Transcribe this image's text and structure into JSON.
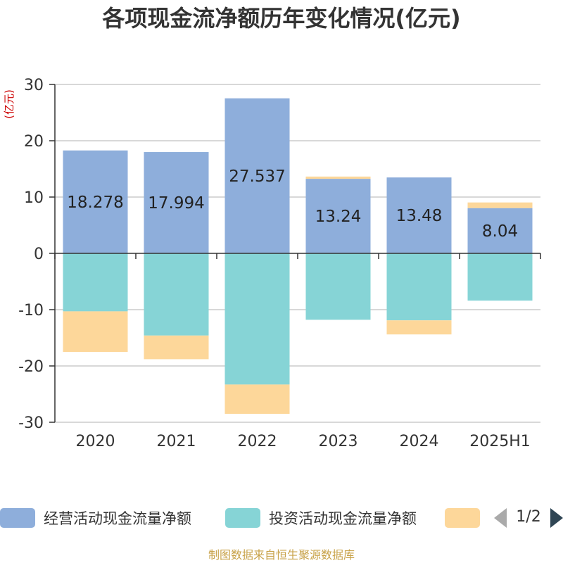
{
  "title": "各项现金流净额历年变化情况(亿元)",
  "source": "制图数据来自恒生聚源数据库",
  "colors": {
    "operating": "#8eaedb",
    "investing": "#86d4d6",
    "financing": "#fdd79a",
    "source_text": "#c8a248",
    "unit_text": "#cc0000"
  },
  "legend": {
    "items": [
      {
        "label": "经营活动现金流量净额"
      },
      {
        "label": "投资活动现金流量净额"
      },
      {
        "label": ""
      }
    ],
    "page": "1/2",
    "prev_icon": "triangle-left-icon",
    "next_icon": "triangle-right-icon"
  },
  "chart_data": {
    "type": "bar",
    "stacked": true,
    "unit_label": "(亿元)",
    "categories": [
      "2020",
      "2021",
      "2022",
      "2023",
      "2024",
      "2025H1"
    ],
    "ylim": [
      -30,
      30
    ],
    "yticks": [
      30,
      20,
      10,
      0,
      -10,
      -20,
      -30
    ],
    "grid": true,
    "series": [
      {
        "name": "经营活动现金流量净额",
        "values": [
          18.278,
          17.994,
          27.537,
          13.24,
          13.48,
          8.04
        ],
        "labels": [
          "18.278",
          "17.994",
          "27.537",
          "13.24",
          "13.48",
          "8.04"
        ]
      },
      {
        "name": "投资活动现金流量净额",
        "values": [
          -10.3,
          -14.6,
          -23.3,
          -11.8,
          -11.9,
          -8.4
        ]
      },
      {
        "name": "",
        "values": [
          -7.2,
          -4.2,
          -5.2,
          0.4,
          -2.5,
          1.0
        ]
      }
    ]
  }
}
